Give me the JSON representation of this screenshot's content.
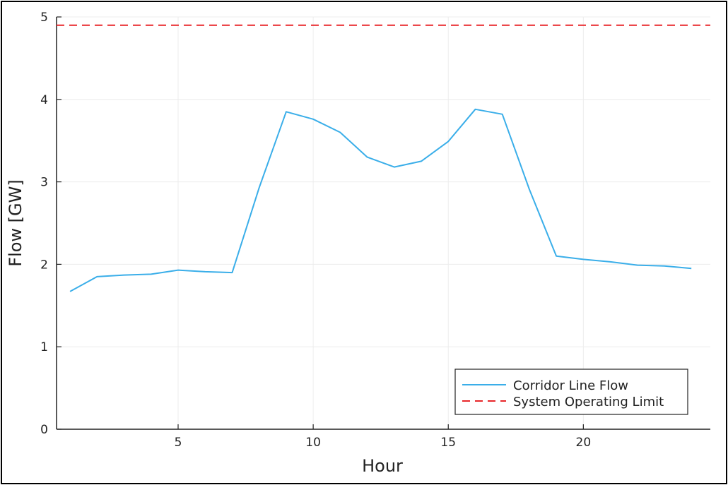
{
  "chart_data": {
    "type": "line",
    "title": "",
    "xlabel": "Hour",
    "ylabel": "Flow [GW]",
    "xlim": [
      0.5,
      24.7
    ],
    "ylim": [
      0,
      5
    ],
    "x_ticks": [
      5,
      10,
      15,
      20
    ],
    "y_ticks": [
      0,
      1,
      2,
      3,
      4,
      5
    ],
    "grid": true,
    "legend_position": "bottom-right",
    "series": [
      {
        "name": "Corridor Line Flow",
        "style": "solid",
        "color": "#3aaee9",
        "x": [
          1,
          2,
          3,
          4,
          5,
          6,
          7,
          8,
          9,
          10,
          11,
          12,
          13,
          14,
          15,
          16,
          17,
          18,
          19,
          20,
          21,
          22,
          23,
          24
        ],
        "values": [
          1.67,
          1.85,
          1.87,
          1.88,
          1.93,
          1.91,
          1.9,
          2.93,
          3.85,
          3.76,
          3.6,
          3.3,
          3.18,
          3.25,
          3.49,
          3.88,
          3.82,
          2.91,
          2.1,
          2.06,
          2.03,
          1.99,
          1.98,
          1.95
        ]
      },
      {
        "name": "System Operating Limit",
        "style": "dashed",
        "color": "#e8262a",
        "x": [
          0.5,
          24.7
        ],
        "values": [
          4.9,
          4.9
        ]
      }
    ]
  }
}
